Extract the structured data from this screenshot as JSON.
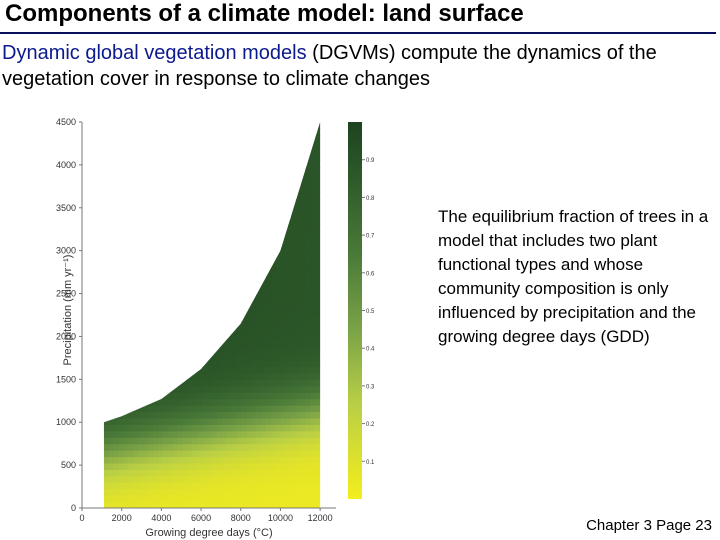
{
  "title": "Components of a climate model: land surface",
  "intro": {
    "highlight": "Dynamic global vegetation models",
    "rest": " (DGVMs) compute the dynamics of the vegetation cover in response to climate changes"
  },
  "caption": "The equilibrium fraction of trees in a model that includes two plant functional types and whose community composition is only influenced by precipitation and the growing degree days (GDD)",
  "footer": "Chapter 3 Page 23",
  "colors": {
    "title_rule": "#0a0f5c",
    "keyword": "#0b1a8c",
    "low_fraction": "#e8e82a",
    "high_fraction": "#1f4a22"
  },
  "chart_data": {
    "type": "heatmap",
    "xlabel": "Growing degree days (°C)",
    "ylabel": "Precipitation (mm yr⁻¹)",
    "xlim": [
      0,
      12800
    ],
    "ylim": [
      0,
      4500
    ],
    "x_ticks": [
      "0",
      "2000",
      "4000",
      "6000",
      "8000",
      "10000",
      "12000"
    ],
    "y_ticks": [
      "0",
      "500",
      "1000",
      "1500",
      "2000",
      "2500",
      "3000",
      "3500",
      "4000",
      "4500"
    ],
    "colorbar_ticks": [
      "0.1",
      "0.2",
      "0.3",
      "0.4",
      "0.5",
      "0.6",
      "0.7",
      "0.8",
      "0.9"
    ],
    "colorbar_range": [
      0,
      1
    ],
    "region_gdd_range": [
      1100,
      12000
    ],
    "lower_boundary": [
      [
        1100,
        0
      ],
      [
        12000,
        0
      ]
    ],
    "upper_boundary": [
      [
        1100,
        1000
      ],
      [
        2000,
        1070
      ],
      [
        4000,
        1270
      ],
      [
        6000,
        1620
      ],
      [
        8000,
        2150
      ],
      [
        10000,
        3000
      ],
      [
        12000,
        4500
      ]
    ]
  }
}
